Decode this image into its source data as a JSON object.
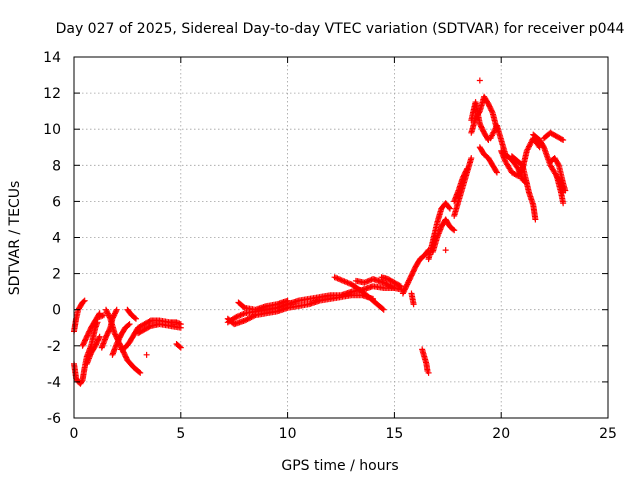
{
  "chart_data": {
    "type": "scatter",
    "title": "Day 027 of 2025, Sidereal Day-to-day VTEC variation (SDTVAR) for receiver p044",
    "xlabel": "GPS time / hours",
    "ylabel": "SDTVAR / TECUs",
    "xlim": [
      0,
      25
    ],
    "ylim": [
      -6,
      14
    ],
    "xticks": [
      0,
      5,
      10,
      15,
      20,
      25
    ],
    "yticks": [
      -6,
      -4,
      -2,
      0,
      2,
      4,
      6,
      8,
      10,
      12,
      14
    ],
    "xtick_labels": [
      "0",
      "5",
      "10",
      "15",
      "20",
      "25"
    ],
    "ytick_labels": [
      "-6",
      "-4",
      "-2",
      "0",
      "2",
      "4",
      "6",
      "8",
      "10",
      "12",
      "14"
    ],
    "grid": true,
    "marker": "+",
    "color": "#ff0000",
    "series": [
      {
        "segments": [
          [
            [
              0.0,
              -1.2
            ],
            [
              0.1,
              -0.5
            ],
            [
              0.2,
              0.0
            ],
            [
              0.3,
              0.2
            ],
            [
              0.4,
              0.4
            ],
            [
              0.5,
              0.5
            ]
          ],
          [
            [
              0.0,
              -3.0
            ],
            [
              0.1,
              -3.8
            ],
            [
              0.2,
              -4.0
            ],
            [
              0.3,
              -4.1
            ],
            [
              0.4,
              -3.9
            ],
            [
              0.5,
              -3.2
            ],
            [
              0.6,
              -2.6
            ],
            [
              0.8,
              -2.0
            ],
            [
              1.0,
              -1.0
            ],
            [
              1.1,
              -0.7
            ]
          ],
          [
            [
              0.6,
              -3.0
            ],
            [
              0.8,
              -2.4
            ],
            [
              1.0,
              -2.0
            ],
            [
              1.2,
              -1.5
            ]
          ],
          [
            [
              0.4,
              -2.0
            ],
            [
              0.6,
              -1.5
            ],
            [
              0.8,
              -1.0
            ],
            [
              1.0,
              -0.6
            ],
            [
              1.2,
              -0.2
            ]
          ],
          [
            [
              1.3,
              -2.1
            ],
            [
              1.5,
              -1.5
            ],
            [
              1.7,
              -1.0
            ],
            [
              1.8,
              -0.5
            ],
            [
              2.0,
              0.0
            ]
          ],
          [
            [
              1.5,
              0.0
            ],
            [
              1.7,
              -0.5
            ],
            [
              1.9,
              -1.3
            ],
            [
              2.1,
              -1.8
            ],
            [
              2.3,
              -2.3
            ],
            [
              2.5,
              -2.8
            ],
            [
              2.8,
              -3.2
            ],
            [
              3.0,
              -3.4
            ],
            [
              3.1,
              -3.5
            ]
          ],
          [
            [
              1.8,
              -2.5
            ],
            [
              2.0,
              -1.9
            ],
            [
              2.2,
              -1.4
            ],
            [
              2.4,
              -1.0
            ],
            [
              2.6,
              -0.8
            ]
          ],
          [
            [
              2.2,
              -2.2
            ],
            [
              2.4,
              -2.1
            ],
            [
              2.6,
              -1.8
            ],
            [
              2.8,
              -1.4
            ],
            [
              3.0,
              -1.0
            ],
            [
              3.3,
              -0.8
            ],
            [
              3.6,
              -0.6
            ],
            [
              4.0,
              -0.6
            ],
            [
              4.5,
              -0.7
            ],
            [
              4.8,
              -0.7
            ],
            [
              5.0,
              -0.8
            ]
          ],
          [
            [
              2.5,
              0.0
            ],
            [
              2.7,
              -0.3
            ],
            [
              2.9,
              -0.5
            ]
          ],
          [
            [
              3.0,
              -1.3
            ],
            [
              3.3,
              -1.1
            ],
            [
              3.6,
              -0.9
            ],
            [
              4.0,
              -0.8
            ],
            [
              4.5,
              -0.9
            ],
            [
              5.0,
              -1.0
            ]
          ],
          [
            [
              4.8,
              -1.9
            ],
            [
              5.0,
              -2.1
            ]
          ],
          [
            [
              1.2,
              -0.4
            ],
            [
              1.4,
              -0.3
            ]
          ],
          [
            [
              7.2,
              -0.7
            ],
            [
              7.6,
              -0.4
            ],
            [
              8.0,
              -0.2
            ],
            [
              8.5,
              -0.1
            ],
            [
              9.0,
              0.0
            ],
            [
              9.5,
              0.1
            ],
            [
              10.0,
              0.3
            ],
            [
              10.5,
              0.5
            ],
            [
              11.0,
              0.6
            ],
            [
              11.5,
              0.7
            ],
            [
              12.0,
              0.8
            ],
            [
              12.5,
              0.8
            ],
            [
              13.0,
              1.0
            ],
            [
              13.5,
              1.1
            ],
            [
              14.0,
              1.3
            ],
            [
              14.5,
              1.2
            ],
            [
              15.0,
              1.2
            ]
          ],
          [
            [
              7.2,
              -0.5
            ],
            [
              7.5,
              -0.8
            ],
            [
              8.0,
              -0.6
            ],
            [
              8.5,
              -0.3
            ],
            [
              9.0,
              -0.2
            ],
            [
              9.5,
              -0.1
            ],
            [
              10.0,
              0.1
            ],
            [
              10.5,
              0.2
            ],
            [
              11.0,
              0.3
            ],
            [
              11.5,
              0.5
            ],
            [
              12.0,
              0.6
            ],
            [
              12.5,
              0.7
            ],
            [
              13.0,
              0.8
            ],
            [
              13.5,
              0.8
            ],
            [
              14.0,
              0.6
            ]
          ],
          [
            [
              7.7,
              0.4
            ],
            [
              8.0,
              0.1
            ],
            [
              8.5,
              0.0
            ],
            [
              9.0,
              0.2
            ],
            [
              9.5,
              0.3
            ],
            [
              10.0,
              0.5
            ]
          ],
          [
            [
              12.2,
              1.8
            ],
            [
              12.6,
              1.6
            ],
            [
              13.0,
              1.4
            ],
            [
              13.5,
              1.0
            ],
            [
              14.0,
              0.5
            ],
            [
              14.3,
              0.2
            ],
            [
              14.5,
              0.0
            ]
          ],
          [
            [
              13.2,
              1.6
            ],
            [
              13.6,
              1.5
            ],
            [
              14.0,
              1.7
            ],
            [
              14.5,
              1.5
            ],
            [
              15.0,
              1.2
            ],
            [
              15.4,
              1.1
            ]
          ],
          [
            [
              14.4,
              1.8
            ],
            [
              14.7,
              1.7
            ],
            [
              15.0,
              1.5
            ],
            [
              15.3,
              1.3
            ]
          ],
          [
            [
              15.4,
              0.9
            ],
            [
              15.6,
              1.4
            ],
            [
              15.8,
              1.9
            ],
            [
              16.0,
              2.4
            ],
            [
              16.2,
              2.8
            ],
            [
              16.4,
              3.0
            ],
            [
              16.6,
              3.3
            ]
          ],
          [
            [
              15.8,
              0.9
            ],
            [
              15.9,
              0.3
            ]
          ],
          [
            [
              16.3,
              -2.2
            ],
            [
              16.4,
              -2.6
            ],
            [
              16.5,
              -3.0
            ],
            [
              16.55,
              -3.4
            ]
          ],
          [
            [
              16.6,
              2.8
            ],
            [
              16.8,
              3.8
            ],
            [
              17.0,
              4.8
            ],
            [
              17.2,
              5.6
            ],
            [
              17.4,
              5.9
            ],
            [
              17.6,
              5.6
            ]
          ],
          [
            [
              16.8,
              3.2
            ],
            [
              17.0,
              4.0
            ],
            [
              17.2,
              4.6
            ],
            [
              17.4,
              5.0
            ],
            [
              17.6,
              4.6
            ],
            [
              17.8,
              4.4
            ]
          ],
          [
            [
              17.8,
              5.2
            ],
            [
              18.0,
              6.0
            ],
            [
              18.2,
              6.8
            ],
            [
              18.4,
              7.6
            ],
            [
              18.6,
              8.4
            ]
          ],
          [
            [
              17.8,
              6.0
            ],
            [
              18.0,
              6.6
            ],
            [
              18.2,
              7.3
            ],
            [
              18.4,
              7.8
            ]
          ],
          [
            [
              18.6,
              9.8
            ],
            [
              18.8,
              10.6
            ],
            [
              19.0,
              11.0
            ],
            [
              19.2,
              11.8
            ],
            [
              19.4,
              11.4
            ],
            [
              19.6,
              10.9
            ],
            [
              19.8,
              10.0
            ]
          ],
          [
            [
              18.6,
              10.5
            ],
            [
              18.8,
              11.5
            ],
            [
              19.0,
              10.3
            ],
            [
              19.2,
              9.8
            ],
            [
              19.4,
              9.4
            ]
          ],
          [
            [
              19.0,
              9.0
            ],
            [
              19.2,
              8.6
            ],
            [
              19.4,
              8.4
            ],
            [
              19.6,
              8.0
            ],
            [
              19.8,
              7.6
            ]
          ],
          [
            [
              19.5,
              9.5
            ],
            [
              19.8,
              10.2
            ],
            [
              20.0,
              9.4
            ],
            [
              20.2,
              8.6
            ],
            [
              20.5,
              8.3
            ],
            [
              20.8,
              7.8
            ],
            [
              21.0,
              7.2
            ],
            [
              21.2,
              7.0
            ]
          ],
          [
            [
              20.0,
              8.8
            ],
            [
              20.2,
              8.2
            ],
            [
              20.5,
              7.6
            ],
            [
              20.8,
              7.4
            ],
            [
              21.0,
              7.8
            ],
            [
              21.2,
              8.8
            ],
            [
              21.5,
              9.5
            ],
            [
              21.8,
              9.0
            ]
          ],
          [
            [
              20.5,
              8.5
            ],
            [
              20.8,
              8.2
            ],
            [
              21.0,
              8.0
            ],
            [
              21.3,
              6.5
            ],
            [
              21.5,
              5.8
            ],
            [
              21.6,
              5.0
            ]
          ],
          [
            [
              21.5,
              9.7
            ],
            [
              21.8,
              9.4
            ],
            [
              22.0,
              9.0
            ],
            [
              22.3,
              8.0
            ],
            [
              22.6,
              7.4
            ],
            [
              22.8,
              7.0
            ],
            [
              22.9,
              6.5
            ]
          ],
          [
            [
              22.0,
              9.5
            ],
            [
              22.3,
              9.8
            ],
            [
              22.6,
              9.6
            ],
            [
              22.9,
              9.4
            ]
          ],
          [
            [
              22.3,
              8.2
            ],
            [
              22.5,
              8.4
            ],
            [
              22.7,
              8.0
            ],
            [
              22.9,
              7.0
            ],
            [
              23.0,
              6.6
            ]
          ],
          [
            [
              22.6,
              7.4
            ],
            [
              22.8,
              6.5
            ],
            [
              22.9,
              5.9
            ]
          ]
        ]
      }
    ],
    "outliers": [
      [
        1.2,
        -0.3
      ],
      [
        3.4,
        -2.5
      ],
      [
        19.0,
        12.7
      ],
      [
        16.6,
        -3.5
      ],
      [
        17.4,
        3.3
      ]
    ]
  }
}
